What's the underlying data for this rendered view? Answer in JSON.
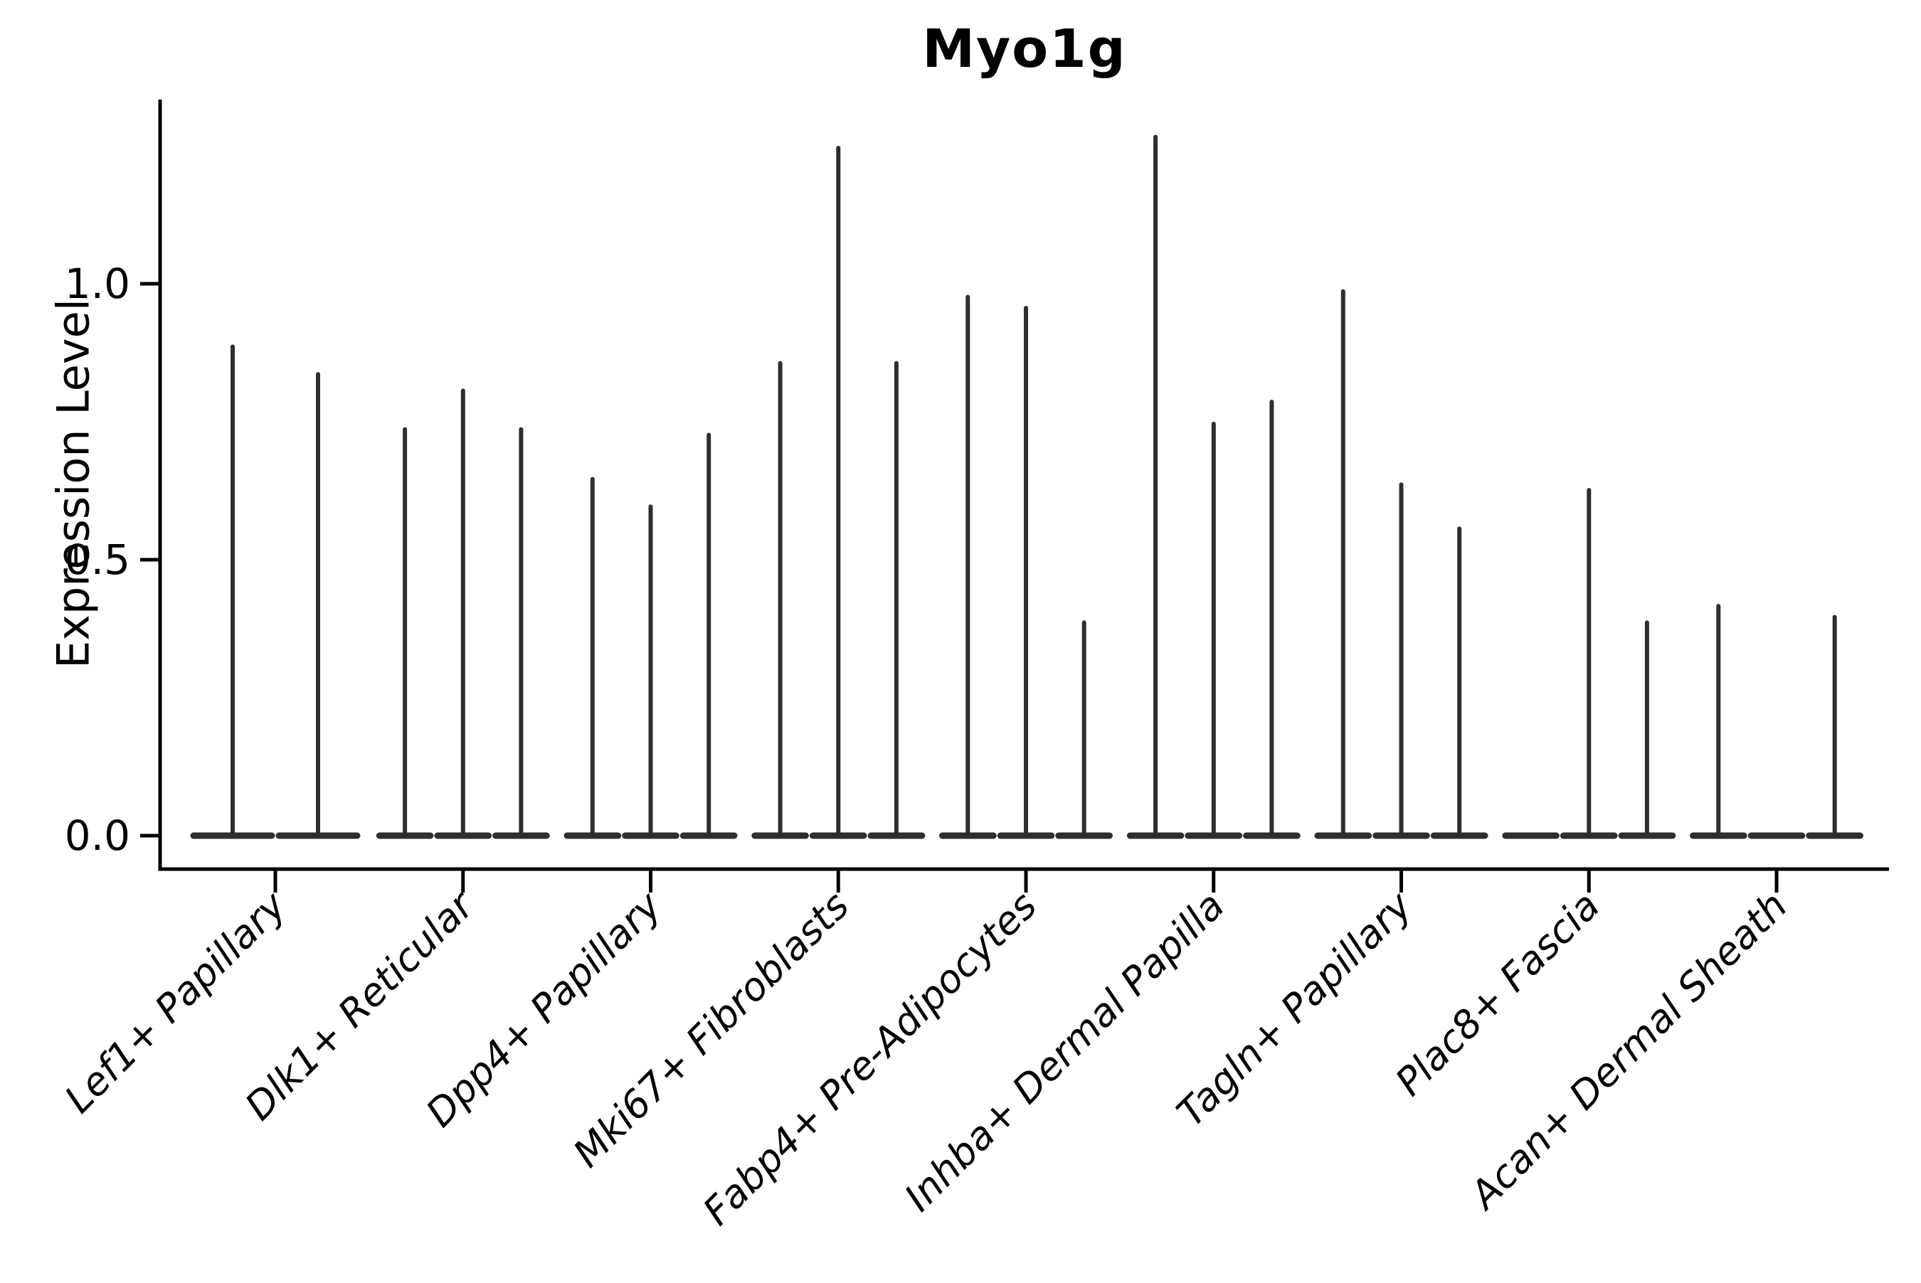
{
  "chart_data": {
    "type": "violin",
    "title": "Myo1g",
    "ylabel": "Expression Level",
    "xlabel": "",
    "ylim": [
      -0.06,
      1.34
    ],
    "grid": false,
    "legend": "none",
    "violin_color": "#2e2e2e",
    "axis_color": "#000000",
    "background_color": "#ffffff",
    "yticks": [
      {
        "label": "0.0",
        "value": 0.0
      },
      {
        "label": "0.5",
        "value": 0.5
      },
      {
        "label": "1.0",
        "value": 1.0
      }
    ],
    "categories": [
      "Lef1+ Papillary",
      "Dlk1+ Reticular",
      "Dpp4+ Papillary",
      "Mki67+ Fibroblasts",
      "Fabp4+ Pre-Adipocytes",
      "Inhba+ Dermal Papilla",
      "Tagln+ Papillary",
      "Plac8+ Fascia",
      "Acan+ Dermal Sheath"
    ],
    "groups": [
      {
        "category": "Lef1+ Papillary",
        "violin_maxima": [
          0.89,
          0.84
        ]
      },
      {
        "category": "Dlk1+ Reticular",
        "violin_maxima": [
          0.74,
          0.81,
          0.74
        ]
      },
      {
        "category": "Dpp4+ Papillary",
        "violin_maxima": [
          0.65,
          0.6,
          0.73
        ]
      },
      {
        "category": "Mki67+ Fibroblasts",
        "violin_maxima": [
          0.86,
          1.25,
          0.86
        ]
      },
      {
        "category": "Fabp4+ Pre-Adipocytes",
        "violin_maxima": [
          0.98,
          0.96,
          0.39
        ]
      },
      {
        "category": "Inhba+ Dermal Papilla",
        "violin_maxima": [
          1.27,
          0.75,
          0.79
        ]
      },
      {
        "category": "Tagln+ Papillary",
        "violin_maxima": [
          0.99,
          0.64,
          0.56
        ]
      },
      {
        "category": "Plac8+ Fascia",
        "violin_maxima": [
          0.0,
          0.63,
          0.39
        ]
      },
      {
        "category": "Acan+ Dermal Sheath",
        "violin_maxima": [
          0.42,
          0.0,
          0.4
        ]
      }
    ]
  }
}
